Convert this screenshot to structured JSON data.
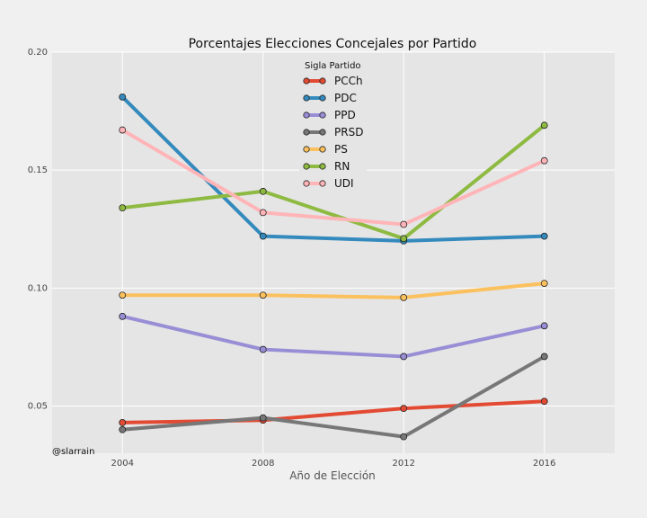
{
  "chart_data": {
    "type": "line",
    "title": "Porcentajes Elecciones Concejales por Partido",
    "xlabel": "Año de Elección",
    "ylabel": "",
    "x": [
      2004,
      2008,
      2012,
      2016
    ],
    "xlim": [
      2002,
      2018
    ],
    "ylim": [
      0.03,
      0.2
    ],
    "xticks": [
      "2004",
      "2008",
      "2012",
      "2016"
    ],
    "yticks": [
      "0.05",
      "0.10",
      "0.15",
      "0.20"
    ],
    "grid": true,
    "legend": {
      "title": "Sigla Partido",
      "position": "top-center"
    },
    "annotation": "@slarrain",
    "series": [
      {
        "name": "PCCh",
        "color": "#e24a33",
        "values": [
          0.043,
          0.044,
          0.049,
          0.052
        ]
      },
      {
        "name": "PDC",
        "color": "#348abd",
        "values": [
          0.181,
          0.122,
          0.12,
          0.122
        ]
      },
      {
        "name": "PPD",
        "color": "#988ed5",
        "values": [
          0.088,
          0.074,
          0.071,
          0.084
        ]
      },
      {
        "name": "PRSD",
        "color": "#777777",
        "values": [
          0.04,
          0.045,
          0.037,
          0.071
        ]
      },
      {
        "name": "PS",
        "color": "#fbc15e",
        "values": [
          0.097,
          0.097,
          0.096,
          0.102
        ]
      },
      {
        "name": "RN",
        "color": "#8eba42",
        "values": [
          0.134,
          0.141,
          0.121,
          0.169
        ]
      },
      {
        "name": "UDI",
        "color": "#ffb5b8",
        "values": [
          0.167,
          0.132,
          0.127,
          0.154
        ]
      }
    ]
  }
}
